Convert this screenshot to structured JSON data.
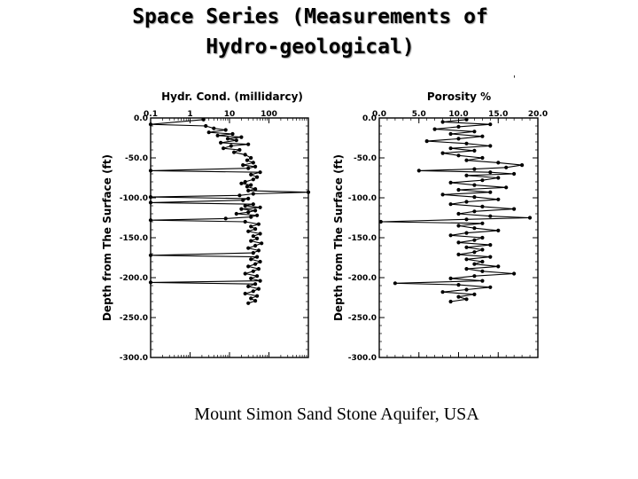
{
  "slide": {
    "title_line1": "Space Series (Measurements of",
    "title_line2": "Hydro-geological)",
    "caption": "Mount Simon Sand Stone Aquifer, USA",
    "stray_mark": "'"
  },
  "chart_data": [
    {
      "type": "line",
      "title": "Hydr. Cond. (millidarcy)",
      "xlabel": "Hydr. Cond. (millidarcy)",
      "ylabel": "Depth from The Surface (ft)",
      "xscale": "log",
      "xlim": [
        0.1,
        1000
      ],
      "ylim": [
        -300,
        0
      ],
      "x_ticks": [
        "0.1",
        "1",
        "10",
        "100"
      ],
      "y_ticks": [
        "0.0",
        "-50.0",
        "-100.0",
        "-150.0",
        "-200.0",
        "-250.0",
        "-300.0"
      ],
      "series": [
        {
          "color": "#000000",
          "points": [
            [
              2.2,
              -2
            ],
            [
              0.1,
              -8
            ],
            [
              2.5,
              -10
            ],
            [
              4,
              -13
            ],
            [
              8,
              -15
            ],
            [
              3,
              -18
            ],
            [
              12,
              -20
            ],
            [
              5,
              -22
            ],
            [
              20,
              -24
            ],
            [
              9,
              -26
            ],
            [
              15,
              -28
            ],
            [
              6,
              -31
            ],
            [
              30,
              -33
            ],
            [
              11,
              -35
            ],
            [
              7,
              -38
            ],
            [
              18,
              -40
            ],
            [
              13,
              -43
            ],
            [
              25,
              -46
            ],
            [
              35,
              -50
            ],
            [
              28,
              -53
            ],
            [
              40,
              -56
            ],
            [
              22,
              -59
            ],
            [
              45,
              -61
            ],
            [
              30,
              -63
            ],
            [
              0.1,
              -66
            ],
            [
              60,
              -68
            ],
            [
              35,
              -71
            ],
            [
              50,
              -74
            ],
            [
              40,
              -77
            ],
            [
              25,
              -80
            ],
            [
              20,
              -82
            ],
            [
              35,
              -84
            ],
            [
              28,
              -86
            ],
            [
              45,
              -89
            ],
            [
              30,
              -91
            ],
            [
              1000,
              -93
            ],
            [
              40,
              -95
            ],
            [
              18,
              -97
            ],
            [
              0.1,
              -99
            ],
            [
              30,
              -101
            ],
            [
              22,
              -103
            ],
            [
              0.1,
              -106
            ],
            [
              40,
              -108
            ],
            [
              25,
              -110
            ],
            [
              60,
              -112
            ],
            [
              20,
              -114
            ],
            [
              45,
              -116
            ],
            [
              30,
              -118
            ],
            [
              15,
              -120
            ],
            [
              50,
              -122
            ],
            [
              35,
              -124
            ],
            [
              8,
              -126
            ],
            [
              0.1,
              -128
            ],
            [
              25,
              -130
            ],
            [
              55,
              -133
            ],
            [
              35,
              -136
            ],
            [
              45,
              -139
            ],
            [
              30,
              -142
            ],
            [
              60,
              -145
            ],
            [
              40,
              -148
            ],
            [
              50,
              -151
            ],
            [
              35,
              -154
            ],
            [
              65,
              -157
            ],
            [
              45,
              -160
            ],
            [
              30,
              -163
            ],
            [
              55,
              -166
            ],
            [
              40,
              -169
            ],
            [
              0.1,
              -172
            ],
            [
              50,
              -174
            ],
            [
              35,
              -177
            ],
            [
              60,
              -180
            ],
            [
              45,
              -183
            ],
            [
              30,
              -186
            ],
            [
              55,
              -189
            ],
            [
              40,
              -192
            ],
            [
              25,
              -195
            ],
            [
              50,
              -198
            ],
            [
              35,
              -201
            ],
            [
              60,
              -204
            ],
            [
              0.1,
              -206
            ],
            [
              45,
              -208
            ],
            [
              30,
              -211
            ],
            [
              55,
              -214
            ],
            [
              40,
              -217
            ],
            [
              25,
              -220
            ],
            [
              50,
              -223
            ],
            [
              35,
              -226
            ],
            [
              45,
              -229
            ],
            [
              30,
              -232
            ]
          ]
        }
      ]
    },
    {
      "type": "line",
      "title": "Porosity %",
      "xlabel": "Porosity %",
      "ylabel": "Depth from The Surface (ft)",
      "xlim": [
        0,
        20
      ],
      "ylim": [
        -300,
        0
      ],
      "x_ticks": [
        "0.0",
        "5.0",
        "10.0",
        "15.0",
        "20.0"
      ],
      "y_ticks": [
        "0.0",
        "-50.0",
        "-100.0",
        "-150.0",
        "-200.0",
        "-250.0",
        "-300.0"
      ],
      "series": [
        {
          "color": "#000000",
          "points": [
            [
              11,
              -2
            ],
            [
              8,
              -5
            ],
            [
              14,
              -8
            ],
            [
              10,
              -11
            ],
            [
              7,
              -14
            ],
            [
              12,
              -17
            ],
            [
              9,
              -20
            ],
            [
              13,
              -23
            ],
            [
              10,
              -26
            ],
            [
              6,
              -29
            ],
            [
              11,
              -32
            ],
            [
              14,
              -35
            ],
            [
              9,
              -38
            ],
            [
              12,
              -41
            ],
            [
              8,
              -44
            ],
            [
              10,
              -47
            ],
            [
              13,
              -50
            ],
            [
              11,
              -53
            ],
            [
              15,
              -56
            ],
            [
              18,
              -59
            ],
            [
              16,
              -62
            ],
            [
              12,
              -64
            ],
            [
              5,
              -66
            ],
            [
              14,
              -68
            ],
            [
              17,
              -70
            ],
            [
              11,
              -72
            ],
            [
              15,
              -75
            ],
            [
              13,
              -78
            ],
            [
              9,
              -81
            ],
            [
              12,
              -84
            ],
            [
              16,
              -87
            ],
            [
              10,
              -90
            ],
            [
              14,
              -93
            ],
            [
              8,
              -96
            ],
            [
              12,
              -99
            ],
            [
              15,
              -102
            ],
            [
              11,
              -105
            ],
            [
              9,
              -108
            ],
            [
              13,
              -111
            ],
            [
              17,
              -114
            ],
            [
              12,
              -117
            ],
            [
              10,
              -120
            ],
            [
              14,
              -123
            ],
            [
              19,
              -125
            ],
            [
              11,
              -127
            ],
            [
              0.2,
              -130
            ],
            [
              13,
              -132
            ],
            [
              10,
              -135
            ],
            [
              12,
              -138
            ],
            [
              15,
              -141
            ],
            [
              11,
              -144
            ],
            [
              9,
              -147
            ],
            [
              13,
              -150
            ],
            [
              12,
              -153
            ],
            [
              10,
              -156
            ],
            [
              14,
              -159
            ],
            [
              11,
              -162
            ],
            [
              13,
              -165
            ],
            [
              12,
              -168
            ],
            [
              10,
              -171
            ],
            [
              14,
              -174
            ],
            [
              11,
              -177
            ],
            [
              13,
              -180
            ],
            [
              12,
              -183
            ],
            [
              15,
              -186
            ],
            [
              11,
              -189
            ],
            [
              13,
              -192
            ],
            [
              17,
              -195
            ],
            [
              12,
              -198
            ],
            [
              9,
              -201
            ],
            [
              13,
              -204
            ],
            [
              2,
              -207
            ],
            [
              10,
              -209
            ],
            [
              14,
              -212
            ],
            [
              11,
              -215
            ],
            [
              8,
              -218
            ],
            [
              12,
              -221
            ],
            [
              10,
              -224
            ],
            [
              11,
              -227
            ],
            [
              9,
              -230
            ]
          ]
        }
      ]
    }
  ]
}
